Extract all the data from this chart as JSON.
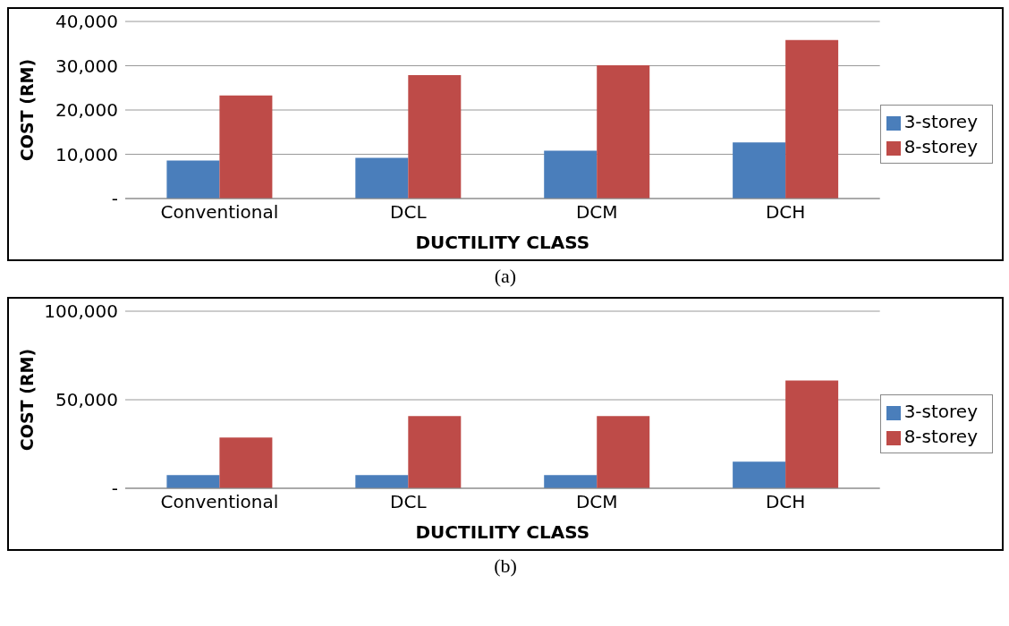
{
  "chart_data": [
    {
      "type": "bar",
      "xlabel": "DUCTILITY CLASS",
      "ylabel": "COST (RM)",
      "categories": [
        "Conventional",
        "DCL",
        "DCM",
        "DCH"
      ],
      "series": [
        {
          "name": "3-storey",
          "color": "#4a7ebb",
          "values": [
            8600,
            9200,
            10800,
            12700
          ]
        },
        {
          "name": "8-storey",
          "color": "#be4b48",
          "values": [
            23300,
            27900,
            30100,
            35800
          ]
        }
      ],
      "ylim": [
        0,
        40000
      ],
      "yticks": [
        {
          "value": 0,
          "label": "-"
        },
        {
          "value": 10000,
          "label": "10,000"
        },
        {
          "value": 20000,
          "label": "20,000"
        },
        {
          "value": 30000,
          "label": "30,000"
        },
        {
          "value": 40000,
          "label": "40,000"
        }
      ],
      "grid": "y",
      "legend": "right",
      "annotations": [
        "(a)"
      ]
    },
    {
      "type": "bar",
      "xlabel": "DUCTILITY CLASS",
      "ylabel": "COST (RM)",
      "categories": [
        "Conventional",
        "DCL",
        "DCM",
        "DCH"
      ],
      "series": [
        {
          "name": "3-storey",
          "color": "#4a7ebb",
          "values": [
            7500,
            7500,
            7500,
            15000
          ]
        },
        {
          "name": "8-storey",
          "color": "#be4b48",
          "values": [
            28700,
            40800,
            40800,
            60900
          ]
        }
      ],
      "ylim": [
        0,
        100000
      ],
      "yticks": [
        {
          "value": 0,
          "label": "-"
        },
        {
          "value": 50000,
          "label": "50,000"
        },
        {
          "value": 100000,
          "label": "100,000"
        }
      ],
      "grid": "y",
      "legend": "right",
      "annotations": [
        "(b)"
      ]
    }
  ]
}
